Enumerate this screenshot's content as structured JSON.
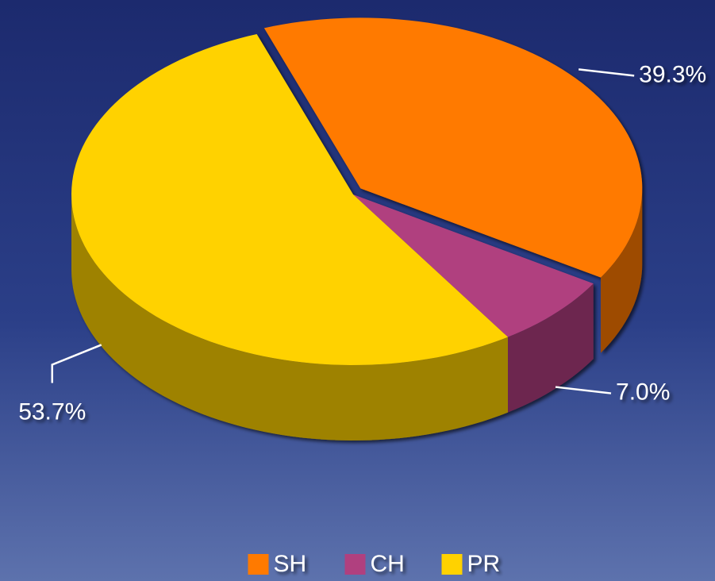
{
  "chart_data": {
    "type": "pie",
    "categories": [
      "SH",
      "CH",
      "PR"
    ],
    "values": [
      39.3,
      7.0,
      53.7
    ],
    "value_labels": [
      "39.3%",
      "7.0%",
      "53.7%"
    ],
    "colors": [
      "#ff7a00",
      "#b0407f",
      "#ffd200"
    ],
    "legend": "bottom"
  }
}
